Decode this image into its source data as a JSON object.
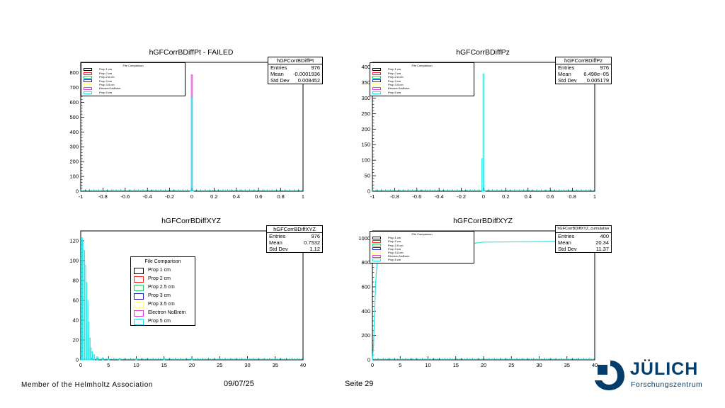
{
  "footer": {
    "association": "Member of the Helmholtz Association",
    "date": "09/07/25",
    "page": "Seite 29"
  },
  "logo": {
    "name": "JÜLICH",
    "subtitle": "Forschungszentrum",
    "color": "#023d6b"
  },
  "colors": {
    "prop1": "#000000",
    "prop2": "#ff2020",
    "prop25": "#20d060",
    "prop3": "#2020c0",
    "prop35": "#ffff80",
    "nobrem": "#e040e0",
    "prop5": "#20e8e8"
  },
  "chart_data": [
    {
      "type": "bar",
      "title": "hGFCorrBDiffPt - FAILED",
      "stats": {
        "name": "hGFCorrBDiffPt",
        "entries_label": "Entries",
        "entries": "976",
        "mean_label": "Mean",
        "mean": "-0.0001936",
        "std_label": "Std Dev",
        "std": "0.008452"
      },
      "legend": {
        "title": "File Comparison",
        "entries": [
          "Prop 1 cm",
          "Prop 2 cm",
          "Prop 2.5 cm",
          "Prop 3 cm",
          "Prop 3.5 cm",
          "Electron NoBrem",
          "Prop 5 cm"
        ],
        "placement": "top-left"
      },
      "xlim": [
        -1,
        1
      ],
      "ylim": [
        0,
        870
      ],
      "xticks": [
        "-1",
        "-0.8",
        "-0.6",
        "-0.4",
        "-0.2",
        "0",
        "0.2",
        "0.4",
        "0.6",
        "0.8",
        "1"
      ],
      "yticks": [
        "0",
        "100",
        "200",
        "300",
        "400",
        "500",
        "600",
        "700",
        "800"
      ],
      "xtickvals": [
        -1,
        -0.8,
        -0.6,
        -0.4,
        -0.2,
        0,
        0.2,
        0.4,
        0.6,
        0.8,
        1
      ],
      "ytickvals": [
        0,
        100,
        200,
        300,
        400,
        500,
        600,
        700,
        800
      ],
      "series": [
        {
          "name": "Electron NoBrem",
          "x": [
            -0.01,
            0,
            0.01
          ],
          "values": [
            5,
            785,
            5
          ]
        },
        {
          "name": "Prop 5 cm",
          "x": [
            -0.01,
            0,
            0.01
          ],
          "values": [
            5,
            630,
            3
          ]
        }
      ]
    },
    {
      "type": "bar",
      "title": "hGFCorrBDiffPz",
      "stats": {
        "name": "hGFCorrBDiffPz",
        "entries_label": "Entries",
        "entries": "976",
        "mean_label": "Mean",
        "mean": "6.498e−05",
        "std_label": "Std Dev",
        "std": "0.005179"
      },
      "legend": {
        "title": "File Comparison",
        "entries": [
          "Prop 1 cm",
          "Prop 2 cm",
          "Prop 2.5 cm",
          "Prop 3 cm",
          "Prop 3.5 cm",
          "Electron NoBrem",
          "Prop 5 cm"
        ],
        "placement": "top-left"
      },
      "xlim": [
        -1,
        1
      ],
      "ylim": [
        0,
        415
      ],
      "xticks": [
        "-1",
        "-0.8",
        "-0.6",
        "-0.4",
        "-0.2",
        "0",
        "0.2",
        "0.4",
        "0.6",
        "0.8",
        "1"
      ],
      "yticks": [
        "0",
        "50",
        "100",
        "150",
        "200",
        "250",
        "300",
        "350",
        "400"
      ],
      "xtickvals": [
        -1,
        -0.8,
        -0.6,
        -0.4,
        -0.2,
        0,
        0.2,
        0.4,
        0.6,
        0.8,
        1
      ],
      "ytickvals": [
        0,
        50,
        100,
        150,
        200,
        250,
        300,
        350,
        400
      ],
      "series": [
        {
          "name": "Prop 5 cm",
          "x": [
            -0.01,
            0,
            0.01
          ],
          "values": [
            105,
            378,
            3
          ]
        }
      ]
    },
    {
      "type": "bar",
      "title": "hGFCorrBDiffXYZ",
      "stats": {
        "name": "hGFCorrBDiffXYZ",
        "entries_label": "Entries",
        "entries": "976",
        "mean_label": "Mean",
        "mean": "0.7532",
        "std_label": "Std Dev",
        "std": "1.12"
      },
      "legend": {
        "title": "File Comparison",
        "entries": [
          "Prop 1 cm",
          "Prop 2 cm",
          "Prop 2.5 cm",
          "Prop 3 cm",
          "Prop 3.5 cm",
          "Electron NoBrem",
          "Prop 5 cm"
        ],
        "placement": "center-left"
      },
      "xlim": [
        0,
        40
      ],
      "ylim": [
        0,
        130
      ],
      "xticks": [
        "0",
        "5",
        "10",
        "15",
        "20",
        "25",
        "30",
        "35",
        "40"
      ],
      "yticks": [
        "0",
        "20",
        "40",
        "60",
        "80",
        "100",
        "120"
      ],
      "xtickvals": [
        0,
        5,
        10,
        15,
        20,
        25,
        30,
        35,
        40
      ],
      "ytickvals": [
        0,
        20,
        40,
        60,
        80,
        100,
        120
      ],
      "series": [
        {
          "name": "Prop 5 cm",
          "x": [
            0.2,
            0.4,
            0.6,
            0.8,
            1.0,
            1.2,
            1.4,
            1.6,
            1.8,
            2.0,
            2.4,
            3,
            4,
            5,
            7,
            10,
            15,
            20
          ],
          "values": [
            123,
            118,
            110,
            95,
            78,
            60,
            38,
            22,
            12,
            8,
            5,
            3,
            2,
            1,
            1,
            1,
            1,
            1
          ]
        }
      ]
    },
    {
      "type": "line",
      "title": "hGFCorrBDiffXYZ",
      "stats": {
        "name": "hGFCorrBDiffXYZ_cumulative",
        "entries_label": "Entries",
        "entries": "400",
        "mean_label": "Mean",
        "mean": "20.34",
        "std_label": "Std Dev",
        "std": "11.37"
      },
      "legend": {
        "title": "File Comparison",
        "entries": [
          "Prop 1 cm",
          "Prop 2 cm",
          "Prop 2.5 cm",
          "Prop 3 cm",
          "Prop 3.5 cm",
          "Electron NoBrem",
          "Prop 5 cm"
        ],
        "placement": "top-left"
      },
      "xlim": [
        0,
        40
      ],
      "ylim": [
        0,
        1060
      ],
      "xticks": [
        "0",
        "5",
        "10",
        "15",
        "20",
        "25",
        "30",
        "35",
        "40"
      ],
      "yticks": [
        "0",
        "200",
        "400",
        "600",
        "800",
        "1000"
      ],
      "xtickvals": [
        0,
        5,
        10,
        15,
        20,
        25,
        30,
        35,
        40
      ],
      "ytickvals": [
        0,
        200,
        400,
        600,
        800,
        1000
      ],
      "series": [
        {
          "name": "Prop 5 cm",
          "x": [
            0,
            0.2,
            0.4,
            0.6,
            0.8,
            1.0,
            1.5,
            2,
            3,
            5,
            10,
            20,
            40
          ],
          "values": [
            0,
            120,
            400,
            640,
            780,
            830,
            860,
            880,
            890,
            900,
            910,
            968,
            976
          ]
        }
      ]
    }
  ]
}
